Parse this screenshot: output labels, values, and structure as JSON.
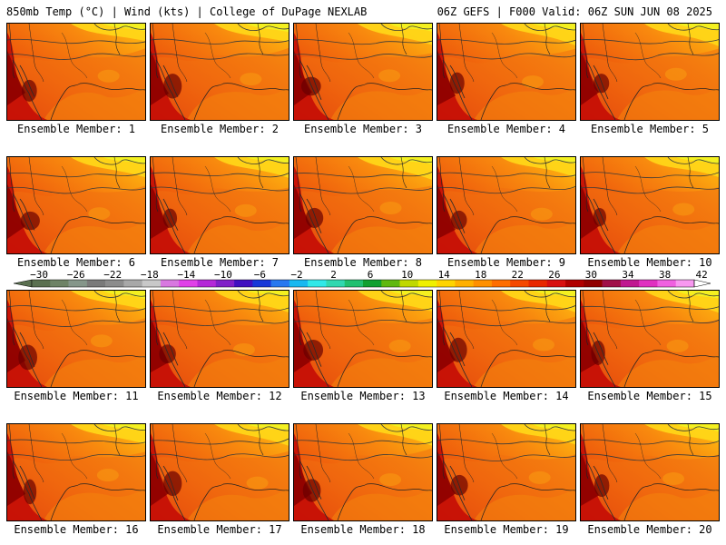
{
  "header": {
    "left": "850mb Temp (°C) | Wind (kts) | College of DuPage NEXLAB",
    "right": "06Z GEFS | F000 Valid: 06Z SUN JUN 08 2025"
  },
  "members": [
    {
      "label": "Ensemble Member: 1"
    },
    {
      "label": "Ensemble Member: 2"
    },
    {
      "label": "Ensemble Member: 3"
    },
    {
      "label": "Ensemble Member: 4"
    },
    {
      "label": "Ensemble Member: 5"
    },
    {
      "label": "Ensemble Member: 6"
    },
    {
      "label": "Ensemble Member: 7"
    },
    {
      "label": "Ensemble Member: 8"
    },
    {
      "label": "Ensemble Member: 9"
    },
    {
      "label": "Ensemble Member: 10"
    },
    {
      "label": "Ensemble Member: 11"
    },
    {
      "label": "Ensemble Member: 12"
    },
    {
      "label": "Ensemble Member: 13"
    },
    {
      "label": "Ensemble Member: 14"
    },
    {
      "label": "Ensemble Member: 15"
    },
    {
      "label": "Ensemble Member: 16"
    },
    {
      "label": "Ensemble Member: 17"
    },
    {
      "label": "Ensemble Member: 18"
    },
    {
      "label": "Ensemble Member: 19"
    },
    {
      "label": "Ensemble Member: 20"
    }
  ],
  "colorbar": {
    "labels": [
      "-30",
      "-26",
      "-22",
      "-18",
      "-14",
      "-10",
      "-6",
      "-2",
      "2",
      "6",
      "10",
      "14",
      "18",
      "22",
      "26",
      "30",
      "34",
      "38",
      "42"
    ],
    "colors": [
      "#5a7050",
      "#6e8366",
      "#85968a",
      "#7a7a7a",
      "#8c8c8c",
      "#a8a8a8",
      "#c8c8c8",
      "#d878e0",
      "#e040e8",
      "#b428d8",
      "#8020c8",
      "#4010c0",
      "#1838d8",
      "#2878f0",
      "#18b8f0",
      "#30e8e8",
      "#30d8b0",
      "#20c070",
      "#10a030",
      "#60b810",
      "#c0d800",
      "#f0f000",
      "#ffd400",
      "#ffb000",
      "#ff9000",
      "#ff6e00",
      "#f54800",
      "#e82800",
      "#d81010",
      "#b00000",
      "#900000",
      "#a01048",
      "#c01890",
      "#e030c0",
      "#f060e0",
      "#f898f0"
    ]
  }
}
